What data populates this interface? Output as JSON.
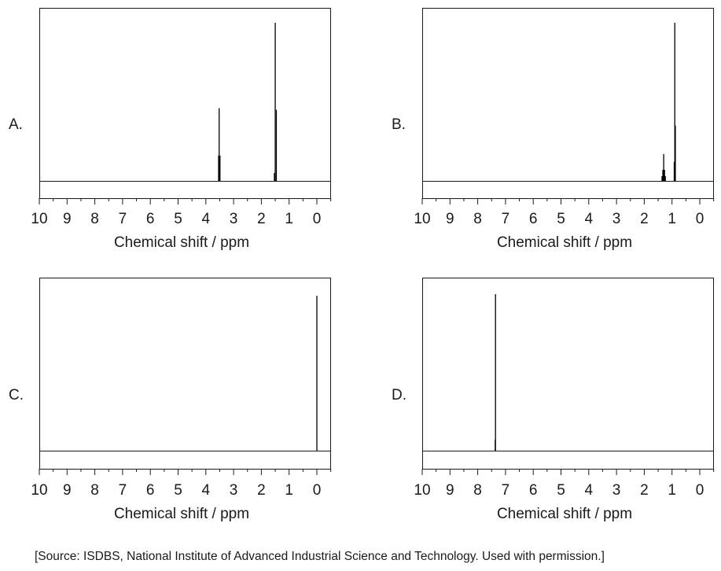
{
  "colors": {
    "axis": "#1a1a1a",
    "peak": "#000000",
    "background": "#ffffff"
  },
  "chart_data": [
    {
      "type": "line",
      "panel_label": "A.",
      "xlabel": "Chemical shift / ppm",
      "ylabel": "",
      "xlim": [
        10,
        0
      ],
      "x_ticks": [
        "10",
        "9",
        "8",
        "7",
        "6",
        "5",
        "4",
        "3",
        "2",
        "1",
        "0"
      ],
      "grid": false,
      "peaks": [
        {
          "ppm": 3.52,
          "rel_height": 0.46
        },
        {
          "ppm": 3.49,
          "rel_height": 0.16
        },
        {
          "ppm": 3.54,
          "rel_height": 0.16
        },
        {
          "ppm": 1.5,
          "rel_height": 1.0
        },
        {
          "ppm": 1.46,
          "rel_height": 0.45
        },
        {
          "ppm": 1.53,
          "rel_height": 0.05
        }
      ]
    },
    {
      "type": "line",
      "panel_label": "B.",
      "xlabel": "Chemical shift / ppm",
      "ylabel": "",
      "xlim": [
        10,
        0
      ],
      "x_ticks": [
        "10",
        "9",
        "8",
        "7",
        "6",
        "5",
        "4",
        "3",
        "2",
        "1",
        "0"
      ],
      "grid": false,
      "peaks": [
        {
          "ppm": 1.3,
          "rel_height": 0.17
        },
        {
          "ppm": 1.33,
          "rel_height": 0.07
        },
        {
          "ppm": 1.27,
          "rel_height": 0.07
        },
        {
          "ppm": 1.36,
          "rel_height": 0.03
        },
        {
          "ppm": 1.24,
          "rel_height": 0.03
        },
        {
          "ppm": 0.9,
          "rel_height": 1.0
        },
        {
          "ppm": 0.88,
          "rel_height": 0.35
        },
        {
          "ppm": 0.92,
          "rel_height": 0.12
        }
      ]
    },
    {
      "type": "line",
      "panel_label": "C.",
      "xlabel": "Chemical shift / ppm",
      "ylabel": "",
      "xlim": [
        10,
        0
      ],
      "x_ticks": [
        "10",
        "9",
        "8",
        "7",
        "6",
        "5",
        "4",
        "3",
        "2",
        "1",
        "0"
      ],
      "grid": false,
      "peaks": [
        {
          "ppm": 0.0,
          "rel_height": 1.0
        }
      ]
    },
    {
      "type": "line",
      "panel_label": "D.",
      "xlabel": "Chemical shift / ppm",
      "ylabel": "",
      "xlim": [
        10,
        0
      ],
      "x_ticks": [
        "10",
        "9",
        "8",
        "7",
        "6",
        "5",
        "4",
        "3",
        "2",
        "1",
        "0"
      ],
      "grid": false,
      "peaks": [
        {
          "ppm": 7.36,
          "rel_height": 1.0
        },
        {
          "ppm": 7.37,
          "rel_height": 0.07
        }
      ]
    }
  ],
  "source_text": "[Source: ISDBS, National Institute of Advanced Industrial Science and Technology. Used with permission.]"
}
